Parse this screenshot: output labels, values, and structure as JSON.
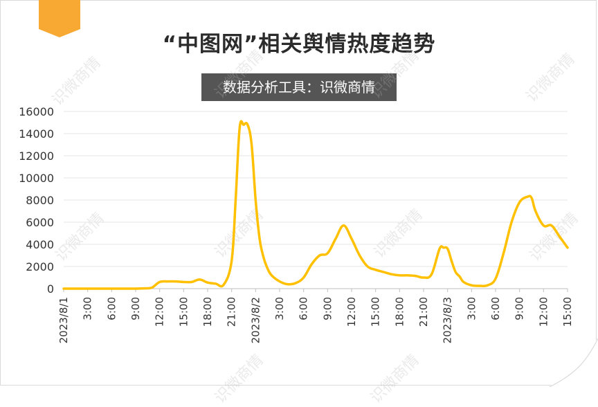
{
  "title": "“中图网”相关舆情热度趋势",
  "subtitle": "数据分析工具：识微商情",
  "watermark_text": "识微商情",
  "colors": {
    "line": "#FFC000",
    "accent_ribbon": "#F7A934",
    "grid": "#e6e6e6",
    "axis": "#bfbfbf",
    "subtitle_bg": "#555555"
  },
  "chart_data": {
    "type": "line",
    "title": "“中图网”相关舆情热度趋势",
    "subtitle": "数据分析工具：识微商情",
    "xlabel": "",
    "ylabel": "",
    "ylim": [
      0,
      16000
    ],
    "yticks": [
      0,
      2000,
      4000,
      6000,
      8000,
      10000,
      12000,
      14000,
      16000
    ],
    "grid": true,
    "legend": "none",
    "x_ticks": [
      {
        "h": 0,
        "label": "2023/8/1"
      },
      {
        "h": 3,
        "label": "3:00"
      },
      {
        "h": 6,
        "label": "6:00"
      },
      {
        "h": 9,
        "label": "9:00"
      },
      {
        "h": 12,
        "label": "12:00"
      },
      {
        "h": 15,
        "label": "15:00"
      },
      {
        "h": 18,
        "label": "18:00"
      },
      {
        "h": 21,
        "label": "21:00"
      },
      {
        "h": 24,
        "label": "2023/8/2"
      },
      {
        "h": 27,
        "label": "3:00"
      },
      {
        "h": 30,
        "label": "6:00"
      },
      {
        "h": 33,
        "label": "9:00"
      },
      {
        "h": 36,
        "label": "12:00"
      },
      {
        "h": 39,
        "label": "15:00"
      },
      {
        "h": 42,
        "label": "18:00"
      },
      {
        "h": 45,
        "label": "21:00"
      },
      {
        "h": 48,
        "label": "2023/8/3"
      },
      {
        "h": 51,
        "label": "3:00"
      },
      {
        "h": 54,
        "label": "6:00"
      },
      {
        "h": 57,
        "label": "9:00"
      },
      {
        "h": 60,
        "label": "12:00"
      },
      {
        "h": 63,
        "label": "15:00"
      }
    ],
    "series": [
      {
        "x": [
          0,
          1,
          2,
          3,
          4,
          5,
          6,
          7,
          8,
          9,
          10,
          11,
          12,
          13,
          14,
          15,
          16,
          17,
          18,
          19,
          20,
          21,
          21.5,
          22,
          22.5,
          23,
          23.5,
          24,
          24.5,
          25,
          25.5,
          26,
          27,
          28,
          29,
          30,
          31,
          32,
          33,
          34,
          35,
          36,
          37,
          38,
          39,
          40,
          41,
          42,
          43,
          44,
          45,
          46,
          47,
          47.5,
          48,
          48.5,
          49,
          49.5,
          50,
          51,
          52,
          53,
          54,
          55,
          56,
          57,
          58,
          58.5,
          59,
          60,
          61,
          62,
          63
        ],
        "y": [
          0,
          0,
          0,
          0,
          0,
          0,
          0,
          0,
          0,
          0,
          20,
          80,
          600,
          650,
          650,
          600,
          600,
          820,
          550,
          450,
          350,
          2500,
          8000,
          14500,
          14800,
          14800,
          13000,
          8000,
          4500,
          2800,
          1800,
          1200,
          650,
          400,
          500,
          1000,
          2200,
          3000,
          3200,
          4500,
          5700,
          4500,
          3000,
          2000,
          1700,
          1500,
          1300,
          1200,
          1200,
          1150,
          1000,
          1300,
          3600,
          3700,
          3600,
          2500,
          1500,
          1100,
          600,
          300,
          250,
          300,
          900,
          3200,
          6000,
          7800,
          8300,
          8200,
          7000,
          5700,
          5700,
          4700,
          3700
        ]
      }
    ]
  }
}
